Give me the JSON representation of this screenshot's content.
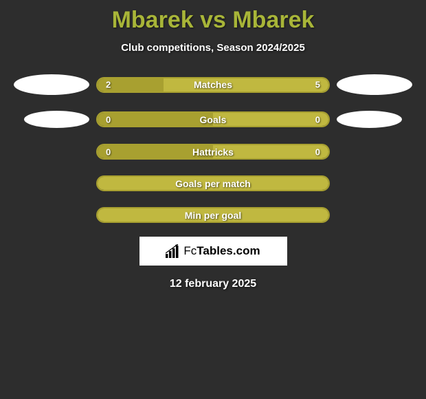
{
  "title": "Mbarek vs Mbarek",
  "subtitle": "Club competitions, Season 2024/2025",
  "date": "12 february 2025",
  "logo": {
    "text_fc": "Fc",
    "text_tables": "Tables.com"
  },
  "colors": {
    "background": "#2d2d2d",
    "title_color": "#a8b538",
    "bar_left_bg": "#a8a030",
    "bar_right_bg": "#c0b840",
    "bar_border": "#a8a030",
    "ellipse": "#ffffff",
    "text": "#ffffff"
  },
  "stats": [
    {
      "label": "Matches",
      "left_value": "2",
      "right_value": "5",
      "left_pct": 28.6,
      "right_pct": 71.4,
      "show_left_ellipse": true,
      "show_right_ellipse": true,
      "show_values": true
    },
    {
      "label": "Goals",
      "left_value": "0",
      "right_value": "0",
      "left_pct": 50,
      "right_pct": 50,
      "show_left_ellipse": true,
      "show_right_ellipse": true,
      "show_values": true,
      "ellipse_small": true
    },
    {
      "label": "Hattricks",
      "left_value": "0",
      "right_value": "0",
      "left_pct": 50,
      "right_pct": 50,
      "show_left_ellipse": false,
      "show_right_ellipse": false,
      "show_values": true
    },
    {
      "label": "Goals per match",
      "left_value": "",
      "right_value": "",
      "left_pct": 0,
      "right_pct": 100,
      "show_left_ellipse": false,
      "show_right_ellipse": false,
      "show_values": false
    },
    {
      "label": "Min per goal",
      "left_value": "",
      "right_value": "",
      "left_pct": 0,
      "right_pct": 100,
      "show_left_ellipse": false,
      "show_right_ellipse": false,
      "show_values": false
    }
  ]
}
